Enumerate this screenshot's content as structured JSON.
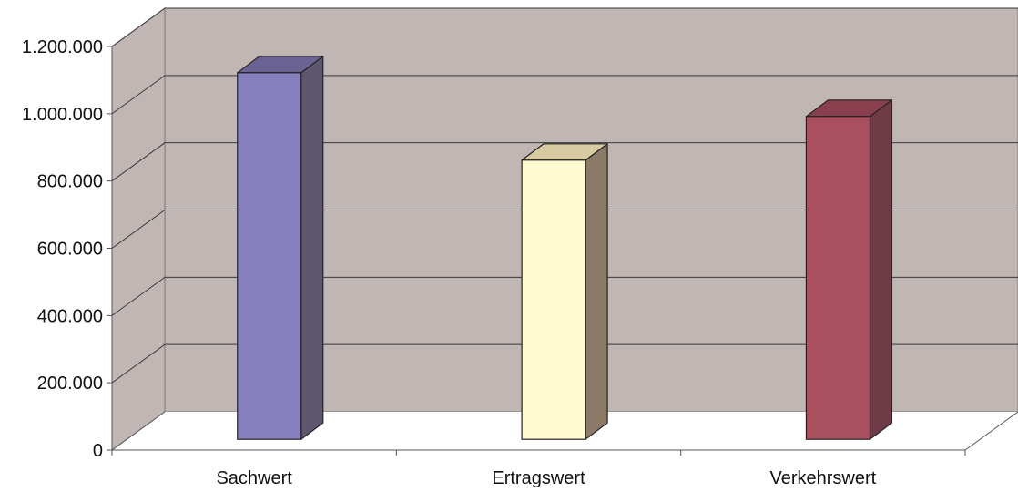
{
  "chart_data": {
    "type": "bar",
    "title": "",
    "xlabel": "",
    "ylabel": "",
    "categories": [
      "Sachwert",
      "Ertragswert",
      "Verkehrswert"
    ],
    "values": [
      1090000,
      830000,
      960000
    ],
    "ylim": [
      0,
      1200000
    ],
    "yticks": [
      0,
      200000,
      400000,
      600000,
      800000,
      1000000,
      1200000
    ],
    "ytick_labels": [
      "0",
      "200.000",
      "400.000",
      "600.000",
      "800.000",
      "1.000.000",
      "1.200.000"
    ],
    "grid": true,
    "style": "3d-column",
    "colors": {
      "wall": "#c0b6b3",
      "gridline": "#3a3a3a",
      "bars": [
        {
          "front": "#8680bf",
          "side": "#5f566f",
          "top": "#6a6394"
        },
        {
          "front": "#fffad0",
          "side": "#8a7a66",
          "top": "#d8cba2"
        },
        {
          "front": "#a8505e",
          "side": "#6e3b46",
          "top": "#8a3f4e"
        }
      ]
    }
  }
}
